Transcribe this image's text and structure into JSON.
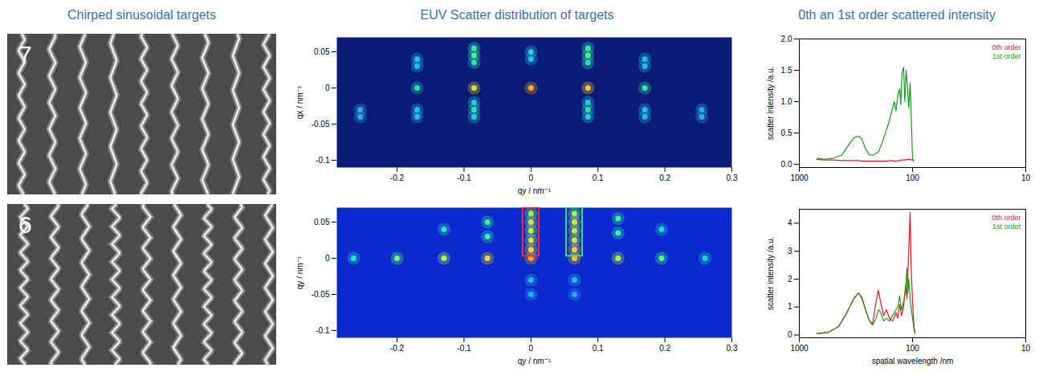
{
  "headers": [
    "Chirped sinusoidal targets",
    "EUV Scatter distribution of targets",
    "0th an 1st order scattered intensity"
  ],
  "image_labels": [
    "7",
    "6"
  ],
  "chart_data": [
    {
      "type": "scatter",
      "x_label": "qy / nm⁻¹",
      "y_label": "qx / nm⁻¹",
      "xlim": [
        -0.29,
        0.3
      ],
      "xticks": [
        -0.2,
        -0.1,
        0,
        0.1,
        0.2,
        0.3
      ],
      "ylim": [
        -0.11,
        0.07
      ],
      "yticks": [
        -0.1,
        -0.05,
        0,
        0.05
      ],
      "spots": {
        "qy": [
          0,
          0.085,
          -0.085,
          0.17,
          -0.17,
          0.255,
          -0.255,
          0,
          0,
          0.085,
          0.085,
          0.085,
          -0.085,
          -0.085,
          -0.085,
          0.085,
          0.085,
          0.085,
          -0.085,
          -0.085,
          -0.085,
          0.17,
          0.17,
          -0.17,
          -0.17,
          0.17,
          0.17,
          -0.17,
          -0.17,
          0.255,
          -0.255
        ],
        "qx": [
          0,
          0,
          0,
          0,
          0,
          -0.03,
          -0.03,
          0.05,
          0.04,
          0.055,
          0.045,
          0.035,
          0.055,
          0.045,
          0.035,
          -0.02,
          -0.03,
          -0.04,
          -0.02,
          -0.03,
          -0.04,
          0.04,
          0.03,
          0.04,
          0.03,
          -0.03,
          -0.04,
          -0.03,
          -0.04,
          -0.04,
          -0.04
        ],
        "intensity": [
          1,
          0.9,
          0.85,
          0.45,
          0.4,
          0.25,
          0.25,
          0.35,
          0.3,
          0.45,
          0.5,
          0.4,
          0.45,
          0.5,
          0.4,
          0.35,
          0.4,
          0.35,
          0.35,
          0.4,
          0.35,
          0.3,
          0.3,
          0.3,
          0.3,
          0.3,
          0.3,
          0.3,
          0.3,
          0.25,
          0.25
        ]
      }
    },
    {
      "type": "line",
      "y_label": "scatter intensity /a.u.",
      "log": "x",
      "xlim": [
        1000,
        10
      ],
      "xticks": [
        1000,
        100,
        10
      ],
      "ylim": [
        -0.05,
        2
      ],
      "yticks": [
        {
          "value": 0,
          "label": "0.0"
        },
        {
          "value": 0.5,
          "label": "0.5"
        },
        {
          "value": 1,
          "label": "1.0"
        },
        {
          "value": 1.5,
          "label": "1.5"
        },
        {
          "value": 2,
          "label": "2.0"
        }
      ],
      "legend": "top-right",
      "x": [
        700,
        600,
        500,
        420,
        370,
        330,
        300,
        280,
        260,
        240,
        220,
        200,
        185,
        170,
        160,
        150,
        145,
        140,
        135,
        130,
        127,
        124,
        120,
        117,
        114,
        111,
        108,
        105,
        102,
        100,
        98
      ],
      "series": [
        {
          "name": "0th order",
          "color": "#e8141b",
          "values": [
            0.08,
            0.07,
            0.07,
            0.06,
            0.06,
            0.06,
            0.06,
            0.05,
            0.05,
            0.05,
            0.05,
            0.05,
            0.05,
            0.05,
            0.06,
            0.06,
            0.05,
            0.05,
            0.06,
            0.06,
            0.06,
            0.07,
            0.07,
            0.07,
            0.07,
            0.08,
            0.08,
            0.08,
            0.07,
            0.07,
            0.07
          ]
        },
        {
          "name": "1st order",
          "color": "#1a9c1a",
          "values": [
            0.1,
            0.08,
            0.1,
            0.15,
            0.3,
            0.42,
            0.45,
            0.4,
            0.25,
            0.15,
            0.15,
            0.2,
            0.35,
            0.55,
            0.7,
            0.9,
            1.0,
            0.85,
            1.1,
            1.2,
            0.95,
            1.45,
            1.55,
            1.0,
            1.5,
            1.25,
            0.9,
            1.3,
            0.6,
            0.1,
            0.05
          ]
        }
      ]
    },
    {
      "type": "scatter",
      "x_label": "qy / nm⁻¹",
      "y_label": "qy / nm⁻¹",
      "xlim": [
        -0.29,
        0.3
      ],
      "xticks": [
        -0.2,
        -0.1,
        0,
        0.1,
        0.2,
        0.3
      ],
      "ylim": [
        -0.11,
        0.07
      ],
      "yticks": [
        -0.1,
        -0.05,
        0,
        0.05
      ],
      "spots": {
        "qy": [
          -0.265,
          -0.2,
          -0.13,
          -0.065,
          0,
          0.065,
          0.13,
          0.195,
          0.26,
          0,
          0,
          0,
          0,
          0,
          0.065,
          0.065,
          0.065,
          0.065,
          0.065,
          0.13,
          0.13,
          -0.13,
          -0.065,
          -0.065,
          0.195,
          0,
          0,
          0.065,
          0.065
        ],
        "qx": [
          0,
          0,
          0,
          0,
          0,
          0,
          0,
          0,
          0,
          0.012,
          0.025,
          0.038,
          0.05,
          0.062,
          0.012,
          0.025,
          0.038,
          0.05,
          0.062,
          0.035,
          0.055,
          0.04,
          0.03,
          0.05,
          0.04,
          -0.03,
          -0.05,
          -0.03,
          -0.05
        ],
        "intensity": [
          0.25,
          0.4,
          0.5,
          0.6,
          0.7,
          0.65,
          0.5,
          0.35,
          0.2,
          0.6,
          0.55,
          0.5,
          0.55,
          0.45,
          0.6,
          0.55,
          0.5,
          0.55,
          0.45,
          0.3,
          0.3,
          0.25,
          0.3,
          0.3,
          0.2,
          0.15,
          0.12,
          0.15,
          0.12
        ]
      },
      "regions": [
        {
          "color": "#ff2a2a",
          "qy": [
            -0.012,
            0.012
          ],
          "qx": [
            0.003,
            0.07
          ]
        },
        {
          "color": "#3ce06a",
          "qy": [
            0.053,
            0.077
          ],
          "qx": [
            0.003,
            0.07
          ]
        }
      ]
    },
    {
      "type": "line",
      "x_label": "spatial wavelength /nm",
      "y_label": "scatter intensity /a.u.",
      "log": "x",
      "xlim": [
        1000,
        10
      ],
      "xticks": [
        1000,
        100,
        10
      ],
      "ylim": [
        -0.1,
        4.5
      ],
      "yticks": [
        0,
        1,
        2,
        3,
        4
      ],
      "legend": "top-right",
      "x": [
        700,
        550,
        450,
        380,
        330,
        300,
        280,
        260,
        240,
        225,
        210,
        200,
        190,
        180,
        170,
        160,
        150,
        140,
        135,
        130,
        125,
        120,
        115,
        112,
        110,
        108,
        105,
        103,
        100,
        97,
        95
      ],
      "series": [
        {
          "name": "0th order",
          "color": "#e8141b",
          "values": [
            0.05,
            0.1,
            0.3,
            0.8,
            1.3,
            1.5,
            1.35,
            0.9,
            0.5,
            0.4,
            1.2,
            1.6,
            1.1,
            0.7,
            0.9,
            0.6,
            0.5,
            0.8,
            0.6,
            1.1,
            0.7,
            1.0,
            1.8,
            1.3,
            2.2,
            3.0,
            4.4,
            2.5,
            1.2,
            0.3,
            0.05
          ]
        },
        {
          "name": "1st order",
          "color": "#1a9c1a",
          "values": [
            0.05,
            0.1,
            0.3,
            0.8,
            1.3,
            1.5,
            1.3,
            0.9,
            0.5,
            0.35,
            0.6,
            0.9,
            0.8,
            0.5,
            0.6,
            0.5,
            0.7,
            0.9,
            1.0,
            1.4,
            0.9,
            1.2,
            1.6,
            2.4,
            1.5,
            2.0,
            1.3,
            1.0,
            0.6,
            0.2,
            0.05
          ]
        }
      ]
    }
  ]
}
